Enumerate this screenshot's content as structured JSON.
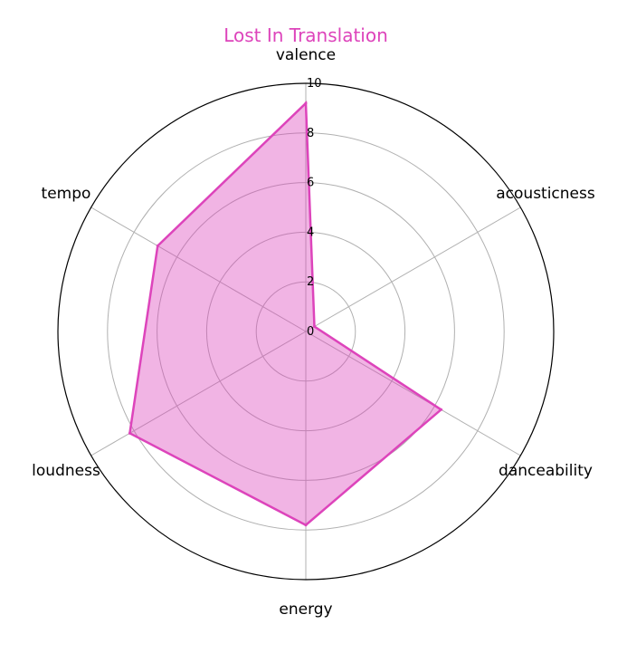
{
  "colors": {
    "series": "#dd44bb",
    "series_fill": "#dd44bb",
    "title": "#dd44bb",
    "grid": "#b0b0b0",
    "frame": "#000000"
  },
  "chart_data": {
    "type": "radar",
    "title": "Lost In Translation",
    "categories": [
      "valence",
      "acousticness",
      "danceability",
      "energy",
      "loudness",
      "tempo"
    ],
    "series": [
      {
        "values": [
          9.2,
          0.4,
          6.3,
          7.8,
          8.2,
          6.9
        ]
      }
    ],
    "rlim": [
      0,
      10
    ],
    "rticks": [
      0,
      2,
      4,
      6,
      8,
      10
    ],
    "grid": true
  }
}
